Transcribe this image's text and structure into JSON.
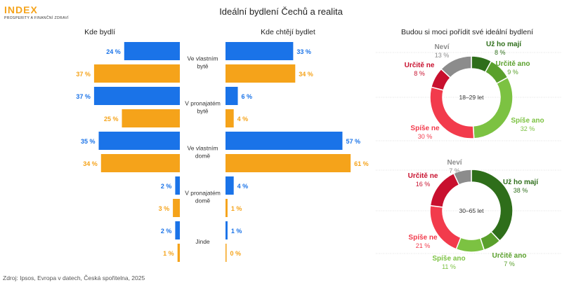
{
  "header": {
    "logo": "INDEX",
    "logo_sub": "PROSPERITY A FINANČNÍ ZDRAVÍ",
    "title": "Ideální bydlení Čechů a realita"
  },
  "source": "Zdroj: Ipsos, Evropa v datech, Česká spořitelna, 2025",
  "colors": {
    "blue": "#1a73e8",
    "orange": "#f5a31a",
    "grid": "#d9d9d9"
  },
  "chart_data": [
    {
      "type": "bar",
      "orientation": "horizontal-butterfly",
      "left_title": "Kde bydlí",
      "right_title": "Kde chtějí bydlet",
      "categories": [
        {
          "label_lines": [
            "Ve vlastním",
            "bytě"
          ]
        },
        {
          "label_lines": [
            "V pronajatém",
            "bytě"
          ]
        },
        {
          "label_lines": [
            "Ve vlastním",
            "domě"
          ]
        },
        {
          "label_lines": [
            "V pronajatém",
            "domě"
          ]
        },
        {
          "label_lines": [
            "Jinde"
          ]
        }
      ],
      "left": {
        "blue": [
          24,
          37,
          35,
          2,
          2
        ],
        "orange": [
          37,
          25,
          34,
          3,
          1
        ]
      },
      "right": {
        "blue": [
          33,
          6,
          57,
          4,
          1
        ],
        "orange": [
          34,
          4,
          61,
          1,
          0
        ]
      },
      "value_suffix": " %"
    },
    {
      "type": "pie",
      "variant": "donut",
      "title": "Budou si moci pořídit své ideální bydlení",
      "center_label": "18–29 let",
      "slices": [
        {
          "label": "Už ho mají",
          "value": 8,
          "color": "#2e6e1a"
        },
        {
          "label": "Určitě ano",
          "value": 9,
          "color": "#5aa02c"
        },
        {
          "label": "Spíše ano",
          "value": 32,
          "color": "#7cc242"
        },
        {
          "label": "Spíše ne",
          "value": 30,
          "color": "#f23b4c"
        },
        {
          "label": "Určitě ne",
          "value": 8,
          "color": "#c8102e"
        },
        {
          "label": "Neví",
          "value": 13,
          "color": "#8c8c8c"
        }
      ]
    },
    {
      "type": "pie",
      "variant": "donut",
      "center_label": "30–65 let",
      "slices": [
        {
          "label": "Už ho mají",
          "value": 38,
          "color": "#2e6e1a"
        },
        {
          "label": "Určitě ano",
          "value": 7,
          "color": "#5aa02c"
        },
        {
          "label": "Spíše ano",
          "value": 11,
          "color": "#7cc242"
        },
        {
          "label": "Spíše ne",
          "value": 21,
          "color": "#f23b4c"
        },
        {
          "label": "Určitě ne",
          "value": 16,
          "color": "#c8102e"
        },
        {
          "label": "Neví",
          "value": 7,
          "color": "#8c8c8c"
        }
      ]
    }
  ]
}
